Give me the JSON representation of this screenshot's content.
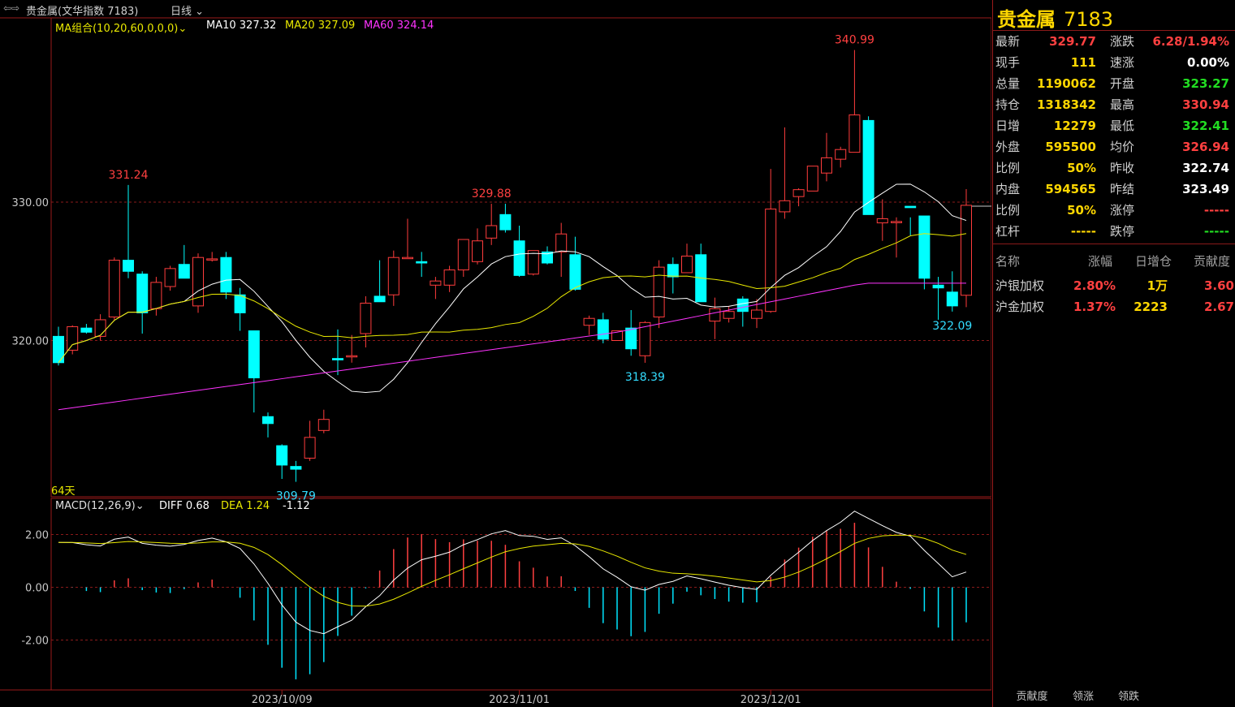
{
  "header": {
    "icon": "link-arrows-icon",
    "title": "贵金属(文华指数 7183)",
    "period": "日线"
  },
  "ma": {
    "name": "MA组合(10,20,60,0,0,0)",
    "ma10": "MA10 327.32",
    "ma20": "MA20 327.09",
    "ma60": "MA60 324.14"
  },
  "macd": {
    "name": "MACD(12,26,9)",
    "diff": "DIFF 0.68",
    "dea": "DEA 1.24",
    "val": "-1.12"
  },
  "days_label": "64天",
  "chart_data": {
    "type": "candlestick",
    "price_ticks": [
      "330.00",
      "320.00"
    ],
    "macd_ticks": [
      "2.00",
      "0.00",
      "-2.00"
    ],
    "date_labels": [
      "2023/10/09",
      "2023/11/01",
      "2023/12/01"
    ],
    "annotations": [
      "331.24",
      "329.88",
      "340.99",
      "318.39",
      "309.79",
      "322.09"
    ]
  },
  "quote": {
    "name": "贵金属",
    "code": "7183",
    "left": [
      [
        "最新",
        "329.77",
        "#ff4040"
      ],
      [
        "现手",
        "111",
        "#ffd700"
      ],
      [
        "总量",
        "1190062",
        "#ffd700"
      ],
      [
        "持仓",
        "1318342",
        "#ffd700"
      ],
      [
        "日增",
        "12279",
        "#ffd700"
      ],
      [
        "外盘",
        "595500",
        "#ffd700"
      ],
      [
        "比例",
        "50%",
        "#ffd700"
      ],
      [
        "内盘",
        "594565",
        "#ffd700"
      ],
      [
        "比例",
        "50%",
        "#ffd700"
      ],
      [
        "杠杆",
        "-----",
        "#ffd700"
      ]
    ],
    "right": [
      [
        "涨跌",
        "6.28/1.94%",
        "#ff4040"
      ],
      [
        "速涨",
        "0.00%",
        "#ffffff"
      ],
      [
        "开盘",
        "323.27",
        "#22dd22"
      ],
      [
        "最高",
        "330.94",
        "#ff4040"
      ],
      [
        "最低",
        "322.41",
        "#22dd22"
      ],
      [
        "均价",
        "326.94",
        "#ff4040"
      ],
      [
        "昨收",
        "322.74",
        "#ffffff"
      ],
      [
        "昨结",
        "323.49",
        "#ffffff"
      ],
      [
        "涨停",
        "-----",
        "#ff4040"
      ],
      [
        "跌停",
        "-----",
        "#22dd22"
      ]
    ]
  },
  "contrib": {
    "headers": [
      "名称",
      "涨幅",
      "日增仓",
      "贡献度"
    ],
    "rows": [
      [
        "沪银加权",
        "2.80%",
        "1万",
        "3.60"
      ],
      [
        "沪金加权",
        "1.37%",
        "2223",
        "2.67"
      ]
    ]
  },
  "tabs": [
    "贡献度",
    "领涨",
    "领跌"
  ]
}
